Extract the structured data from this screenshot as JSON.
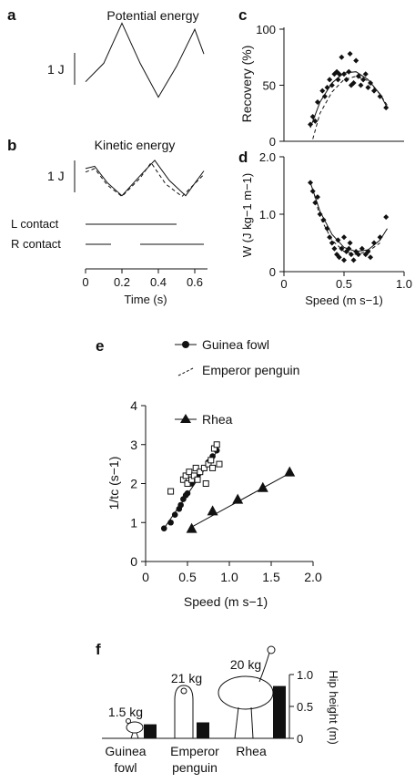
{
  "chart_data": [
    {
      "panel": "a",
      "type": "line",
      "title": "Potential energy",
      "scale_label": "1 J",
      "series": [
        {
          "x": [
            0,
            0.1,
            0.2,
            0.3,
            0.4,
            0.5,
            0.6,
            0.65
          ],
          "values": [
            0.6,
            1.2,
            2.5,
            1.2,
            0.1,
            1.1,
            2.3,
            1.5
          ]
        }
      ]
    },
    {
      "panel": "b",
      "type": "line",
      "title": "Kinetic energy",
      "scale_label": "1 J",
      "series": [
        {
          "style": "solid",
          "x": [
            0,
            0.05,
            0.12,
            0.2,
            0.3,
            0.38,
            0.46,
            0.55,
            0.65
          ],
          "values": [
            1.2,
            1.3,
            0.6,
            0.05,
            0.9,
            1.55,
            0.7,
            0.05,
            1.1
          ]
        },
        {
          "style": "dashed",
          "x": [
            0,
            0.05,
            0.12,
            0.2,
            0.3,
            0.36,
            0.44,
            0.53,
            0.65
          ],
          "values": [
            1.05,
            1.2,
            0.5,
            0.02,
            0.8,
            1.45,
            0.55,
            0.02,
            0.95
          ]
        }
      ],
      "contacts": [
        {
          "label": "L contact",
          "bars": [
            [
              0,
              0.5
            ]
          ]
        },
        {
          "label": "R contact",
          "bars": [
            [
              0,
              0.14
            ],
            [
              0.3,
              0.65
            ]
          ]
        }
      ],
      "xlabel": "Time (s)",
      "xticks": [
        "0",
        "0.2",
        "0.4",
        "0.6"
      ],
      "xlim": [
        0,
        0.67
      ]
    },
    {
      "panel": "c",
      "type": "scatter",
      "ylabel": "Recovery (%)",
      "yticks": [
        "0",
        "50",
        "100"
      ],
      "ylim": [
        0,
        100
      ],
      "xlim": [
        0,
        1.0
      ],
      "points": [
        [
          0.22,
          15
        ],
        [
          0.24,
          22
        ],
        [
          0.26,
          18
        ],
        [
          0.28,
          35
        ],
        [
          0.32,
          45
        ],
        [
          0.34,
          40
        ],
        [
          0.36,
          48
        ],
        [
          0.38,
          55
        ],
        [
          0.4,
          50
        ],
        [
          0.42,
          60
        ],
        [
          0.44,
          62
        ],
        [
          0.45,
          55
        ],
        [
          0.46,
          60
        ],
        [
          0.48,
          75
        ],
        [
          0.5,
          60
        ],
        [
          0.52,
          55
        ],
        [
          0.54,
          62
        ],
        [
          0.55,
          78
        ],
        [
          0.56,
          50
        ],
        [
          0.58,
          52
        ],
        [
          0.6,
          72
        ],
        [
          0.62,
          58
        ],
        [
          0.64,
          50
        ],
        [
          0.66,
          55
        ],
        [
          0.68,
          60
        ],
        [
          0.7,
          48
        ],
        [
          0.72,
          52
        ],
        [
          0.75,
          45
        ],
        [
          0.8,
          40
        ],
        [
          0.85,
          30
        ]
      ],
      "fits": [
        {
          "style": "solid",
          "x": [
            0.22,
            0.3,
            0.4,
            0.5,
            0.6,
            0.7,
            0.8,
            0.86
          ],
          "values": [
            12,
            35,
            52,
            61,
            62,
            55,
            42,
            30
          ]
        },
        {
          "style": "dashed",
          "x": [
            0.24,
            0.3,
            0.4,
            0.5,
            0.6,
            0.7,
            0.8,
            0.86
          ],
          "values": [
            2,
            25,
            44,
            55,
            58,
            54,
            42,
            32
          ]
        }
      ]
    },
    {
      "panel": "d",
      "type": "scatter",
      "ylabel": "W (J kg−1 m−1)",
      "yticks": [
        "0",
        "1.0",
        "2.0"
      ],
      "ylim": [
        0,
        2.0
      ],
      "xlabel": "Speed (m s−1)",
      "xticks": [
        "0",
        "0.5",
        "1.0"
      ],
      "xlim": [
        0,
        1.0
      ],
      "points": [
        [
          0.22,
          1.55
        ],
        [
          0.24,
          1.4
        ],
        [
          0.26,
          1.2
        ],
        [
          0.28,
          1.3
        ],
        [
          0.3,
          1.0
        ],
        [
          0.33,
          0.9
        ],
        [
          0.36,
          0.75
        ],
        [
          0.38,
          0.6
        ],
        [
          0.4,
          0.5
        ],
        [
          0.42,
          0.4
        ],
        [
          0.44,
          0.3
        ],
        [
          0.45,
          0.55
        ],
        [
          0.46,
          0.25
        ],
        [
          0.48,
          0.4
        ],
        [
          0.5,
          0.6
        ],
        [
          0.5,
          0.2
        ],
        [
          0.52,
          0.35
        ],
        [
          0.54,
          0.4
        ],
        [
          0.55,
          0.5
        ],
        [
          0.56,
          0.3
        ],
        [
          0.58,
          0.2
        ],
        [
          0.6,
          0.35
        ],
        [
          0.62,
          0.3
        ],
        [
          0.65,
          0.4
        ],
        [
          0.68,
          0.3
        ],
        [
          0.7,
          0.35
        ],
        [
          0.75,
          0.5
        ],
        [
          0.8,
          0.6
        ],
        [
          0.85,
          0.95
        ],
        [
          0.72,
          0.25
        ]
      ],
      "fits": [
        {
          "style": "solid",
          "x": [
            0.22,
            0.3,
            0.4,
            0.5,
            0.6,
            0.7,
            0.8,
            0.86
          ],
          "values": [
            1.55,
            1.05,
            0.65,
            0.42,
            0.35,
            0.38,
            0.55,
            0.75
          ]
        },
        {
          "style": "dashed",
          "x": [
            0.24,
            0.3,
            0.4,
            0.5,
            0.6,
            0.7,
            0.8
          ],
          "values": [
            1.45,
            0.95,
            0.55,
            0.35,
            0.3,
            0.35,
            0.5
          ]
        }
      ]
    },
    {
      "panel": "e",
      "type": "scatter",
      "ylabel": "1/tc (s−1)",
      "yticks": [
        "0",
        "1",
        "2",
        "3",
        "4"
      ],
      "ylim": [
        0,
        4
      ],
      "xlabel": "Speed (m s−1)",
      "xticks": [
        "0",
        "0.5",
        "1.0",
        "1.5",
        "2.0"
      ],
      "xlim": [
        0,
        2.0
      ],
      "legend": [
        "Guinea fowl",
        "Emperor penguin",
        "Rhea"
      ],
      "series": [
        {
          "name": "Guinea fowl",
          "marker": "circle",
          "points": [
            [
              0.22,
              0.85
            ],
            [
              0.3,
              1.0
            ],
            [
              0.35,
              1.2
            ],
            [
              0.4,
              1.35
            ],
            [
              0.42,
              1.45
            ],
            [
              0.45,
              1.6
            ],
            [
              0.48,
              1.7
            ],
            [
              0.5,
              1.75
            ],
            [
              0.55,
              2.0
            ],
            [
              0.6,
              2.1
            ],
            [
              0.62,
              2.2
            ],
            [
              0.65,
              2.3
            ],
            [
              0.7,
              2.4
            ],
            [
              0.75,
              2.55
            ],
            [
              0.8,
              2.7
            ],
            [
              0.85,
              2.85
            ]
          ],
          "fit": {
            "x": [
              0.22,
              0.86
            ],
            "values": [
              0.85,
              2.85
            ]
          }
        },
        {
          "name": "Emperor penguin",
          "marker": "square",
          "points": [
            [
              0.3,
              1.8
            ],
            [
              0.45,
              2.1
            ],
            [
              0.48,
              2.2
            ],
            [
              0.5,
              2.0
            ],
            [
              0.52,
              2.3
            ],
            [
              0.55,
              2.1
            ],
            [
              0.58,
              2.2
            ],
            [
              0.6,
              2.4
            ],
            [
              0.62,
              2.1
            ],
            [
              0.65,
              2.3
            ],
            [
              0.7,
              2.4
            ],
            [
              0.72,
              2.0
            ],
            [
              0.75,
              2.5
            ],
            [
              0.78,
              2.6
            ],
            [
              0.8,
              2.4
            ],
            [
              0.82,
              2.9
            ],
            [
              0.85,
              3.0
            ],
            [
              0.88,
              2.5
            ]
          ]
        },
        {
          "name": "Rhea",
          "marker": "triangle",
          "points": [
            [
              0.55,
              0.85
            ],
            [
              0.8,
              1.3
            ],
            [
              1.1,
              1.6
            ],
            [
              1.4,
              1.9
            ],
            [
              1.72,
              2.3
            ]
          ],
          "fit": {
            "x": [
              0.52,
              1.75
            ],
            "values": [
              0.85,
              2.3
            ]
          }
        }
      ]
    },
    {
      "panel": "f",
      "type": "bar",
      "categories": [
        "Guinea fowl",
        "Emperor penguin",
        "Rhea"
      ],
      "category_lines": [
        [
          "Guinea",
          "fowl"
        ],
        [
          "Emperor",
          "penguin"
        ],
        [
          "Rhea"
        ]
      ],
      "masses": [
        "1.5 kg",
        "21 kg",
        "20 kg"
      ],
      "values": [
        0.22,
        0.25,
        0.82
      ],
      "ylabel": "Hip height (m)",
      "yticks": [
        "0",
        "0.5",
        "1.0"
      ],
      "ylim": [
        0,
        1.0
      ]
    }
  ],
  "panel_labels": {
    "a": "a",
    "b": "b",
    "c": "c",
    "d": "d",
    "e": "e",
    "f": "f"
  }
}
